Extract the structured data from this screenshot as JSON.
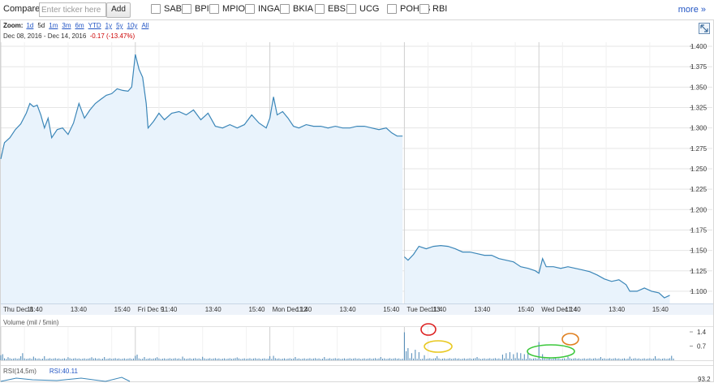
{
  "compare": {
    "label": "Compare:",
    "placeholder": "Enter ticker here",
    "add_label": "Add",
    "tickers": [
      "SAB",
      "BPI",
      "MPIO",
      "INGA",
      "BKIA",
      "EBS",
      "UCG",
      "POH1S",
      "RBI"
    ],
    "more_label": "more »"
  },
  "zoom": {
    "label": "Zoom:",
    "options": [
      "1d",
      "5d",
      "1m",
      "3m",
      "6m",
      "YTD",
      "1y",
      "5y",
      "10y",
      "All"
    ],
    "active": "5d"
  },
  "range": {
    "from": "Dec 08, 2016",
    "sep": "-",
    "to": "Dec 14, 2016",
    "change": "-0.17 (-13.47%)"
  },
  "volume_panel": {
    "label": "Volume (mil / 5min)",
    "ticks": [
      "1.4",
      "0.7"
    ]
  },
  "rsi_panel": {
    "label": "RSI(14,5m)",
    "value": "RSI:40.11",
    "tick": "93.2"
  },
  "colors": {
    "line": "#3b86b8",
    "fill": "#e9f3fc",
    "grid": "#e5e5e5",
    "link": "#2255c4",
    "negative": "#cc0000"
  },
  "chart_data": {
    "type": "line",
    "y_ticks": [
      "1.400",
      "1.375",
      "1.350",
      "1.325",
      "1.300",
      "1.275",
      "1.250",
      "1.225",
      "1.200",
      "1.175",
      "1.150",
      "1.125",
      "1.100"
    ],
    "ylim": [
      1.085,
      1.405
    ],
    "x_ticks": [
      {
        "label": "Thu Dec 8",
        "t": 0
      },
      {
        "label": "11:40",
        "t": 13
      },
      {
        "label": "13:40",
        "t": 37
      },
      {
        "label": "15:40",
        "t": 61
      },
      {
        "label": "Fri Dec 9",
        "t": 74
      },
      {
        "label": "11:40",
        "t": 87
      },
      {
        "label": "13:40",
        "t": 111
      },
      {
        "label": "15:40",
        "t": 135
      },
      {
        "label": "Mon Dec 12",
        "t": 148
      },
      {
        "label": "11:40",
        "t": 161
      },
      {
        "label": "13:40",
        "t": 185
      },
      {
        "label": "15:40",
        "t": 209
      },
      {
        "label": "Tue Dec 13",
        "t": 222
      },
      {
        "label": "11:40",
        "t": 235
      },
      {
        "label": "13:40",
        "t": 259
      },
      {
        "label": "15:40",
        "t": 283
      },
      {
        "label": "Wed Dec 14",
        "t": 296
      },
      {
        "label": "11:40",
        "t": 309
      },
      {
        "label": "13:40",
        "t": 333
      },
      {
        "label": "15:40",
        "t": 357
      }
    ],
    "t_max": 370,
    "series": [
      {
        "values": [
          [
            0,
            1.262
          ],
          [
            2,
            1.282
          ],
          [
            5,
            1.288
          ],
          [
            8,
            1.298
          ],
          [
            11,
            1.305
          ],
          [
            14,
            1.318
          ],
          [
            16,
            1.33
          ],
          [
            18,
            1.326
          ],
          [
            20,
            1.328
          ],
          [
            22,
            1.316
          ],
          [
            24,
            1.3
          ],
          [
            26,
            1.312
          ],
          [
            28,
            1.288
          ],
          [
            31,
            1.298
          ],
          [
            34,
            1.3
          ],
          [
            37,
            1.292
          ],
          [
            40,
            1.306
          ],
          [
            43,
            1.33
          ],
          [
            46,
            1.312
          ],
          [
            49,
            1.322
          ],
          [
            52,
            1.33
          ],
          [
            55,
            1.335
          ],
          [
            58,
            1.34
          ],
          [
            61,
            1.342
          ],
          [
            64,
            1.348
          ],
          [
            67,
            1.346
          ],
          [
            70,
            1.345
          ],
          [
            72,
            1.35
          ],
          [
            74,
            1.39
          ],
          [
            76,
            1.372
          ],
          [
            78,
            1.362
          ],
          [
            80,
            1.33
          ],
          [
            81,
            1.3
          ],
          [
            84,
            1.308
          ],
          [
            87,
            1.318
          ],
          [
            90,
            1.31
          ],
          [
            94,
            1.318
          ],
          [
            98,
            1.32
          ],
          [
            102,
            1.316
          ],
          [
            106,
            1.322
          ],
          [
            110,
            1.31
          ],
          [
            114,
            1.318
          ],
          [
            118,
            1.302
          ],
          [
            122,
            1.3
          ],
          [
            126,
            1.304
          ],
          [
            130,
            1.3
          ],
          [
            134,
            1.304
          ],
          [
            138,
            1.316
          ],
          [
            142,
            1.306
          ],
          [
            146,
            1.3
          ],
          [
            148,
            1.312
          ],
          [
            150,
            1.338
          ],
          [
            152,
            1.316
          ],
          [
            155,
            1.32
          ],
          [
            158,
            1.312
          ],
          [
            161,
            1.302
          ],
          [
            164,
            1.3
          ],
          [
            168,
            1.304
          ],
          [
            172,
            1.302
          ],
          [
            176,
            1.302
          ],
          [
            180,
            1.3
          ],
          [
            184,
            1.302
          ],
          [
            188,
            1.3
          ],
          [
            192,
            1.3
          ],
          [
            196,
            1.302
          ],
          [
            200,
            1.302
          ],
          [
            204,
            1.3
          ],
          [
            208,
            1.298
          ],
          [
            212,
            1.3
          ],
          [
            215,
            1.294
          ],
          [
            218,
            1.29
          ],
          [
            221,
            1.29
          ]
        ]
      },
      {
        "values": [
          [
            222,
            1.142
          ],
          [
            224,
            1.138
          ],
          [
            227,
            1.145
          ],
          [
            230,
            1.155
          ],
          [
            234,
            1.152
          ],
          [
            238,
            1.155
          ],
          [
            242,
            1.156
          ],
          [
            246,
            1.155
          ],
          [
            250,
            1.152
          ],
          [
            254,
            1.148
          ],
          [
            258,
            1.148
          ],
          [
            262,
            1.146
          ],
          [
            266,
            1.144
          ],
          [
            270,
            1.144
          ],
          [
            274,
            1.14
          ],
          [
            278,
            1.138
          ],
          [
            282,
            1.136
          ],
          [
            286,
            1.13
          ],
          [
            290,
            1.128
          ],
          [
            294,
            1.125
          ],
          [
            296,
            1.122
          ],
          [
            298,
            1.14
          ],
          [
            300,
            1.13
          ],
          [
            304,
            1.13
          ],
          [
            308,
            1.128
          ],
          [
            312,
            1.13
          ],
          [
            316,
            1.128
          ],
          [
            320,
            1.126
          ],
          [
            324,
            1.124
          ],
          [
            328,
            1.12
          ],
          [
            332,
            1.115
          ],
          [
            336,
            1.112
          ],
          [
            340,
            1.114
          ],
          [
            344,
            1.108
          ],
          [
            346,
            1.1
          ],
          [
            350,
            1.1
          ],
          [
            354,
            1.104
          ],
          [
            358,
            1.1
          ],
          [
            362,
            1.098
          ],
          [
            365,
            1.092
          ],
          [
            368,
            1.095
          ]
        ]
      }
    ],
    "volume": {
      "ylim": [
        0,
        1.6
      ],
      "baseline": 0.06,
      "spikes": [
        [
          0,
          0.25
        ],
        [
          1,
          0.3
        ],
        [
          4,
          0.15
        ],
        [
          11,
          0.2
        ],
        [
          12,
          0.35
        ],
        [
          18,
          0.18
        ],
        [
          24,
          0.2
        ],
        [
          37,
          0.15
        ],
        [
          50,
          0.15
        ],
        [
          57,
          0.16
        ],
        [
          74,
          0.22
        ],
        [
          75,
          0.28
        ],
        [
          79,
          0.16
        ],
        [
          86,
          0.15
        ],
        [
          100,
          0.18
        ],
        [
          111,
          0.17
        ],
        [
          130,
          0.14
        ],
        [
          148,
          0.2
        ],
        [
          150,
          0.22
        ],
        [
          162,
          0.16
        ],
        [
          178,
          0.16
        ],
        [
          209,
          0.16
        ],
        [
          222,
          1.38
        ],
        [
          223,
          0.45
        ],
        [
          224,
          0.6
        ],
        [
          226,
          0.35
        ],
        [
          228,
          0.52
        ],
        [
          230,
          0.4
        ],
        [
          233,
          0.25
        ],
        [
          240,
          0.2
        ],
        [
          262,
          0.16
        ],
        [
          276,
          0.28
        ],
        [
          278,
          0.35
        ],
        [
          280,
          0.4
        ],
        [
          282,
          0.3
        ],
        [
          284,
          0.38
        ],
        [
          286,
          0.35
        ],
        [
          288,
          0.3
        ],
        [
          290,
          0.42
        ],
        [
          296,
          0.9
        ],
        [
          298,
          0.3
        ],
        [
          312,
          0.18
        ],
        [
          330,
          0.16
        ],
        [
          346,
          0.18
        ],
        [
          360,
          0.2
        ],
        [
          369,
          0.22
        ]
      ]
    }
  }
}
